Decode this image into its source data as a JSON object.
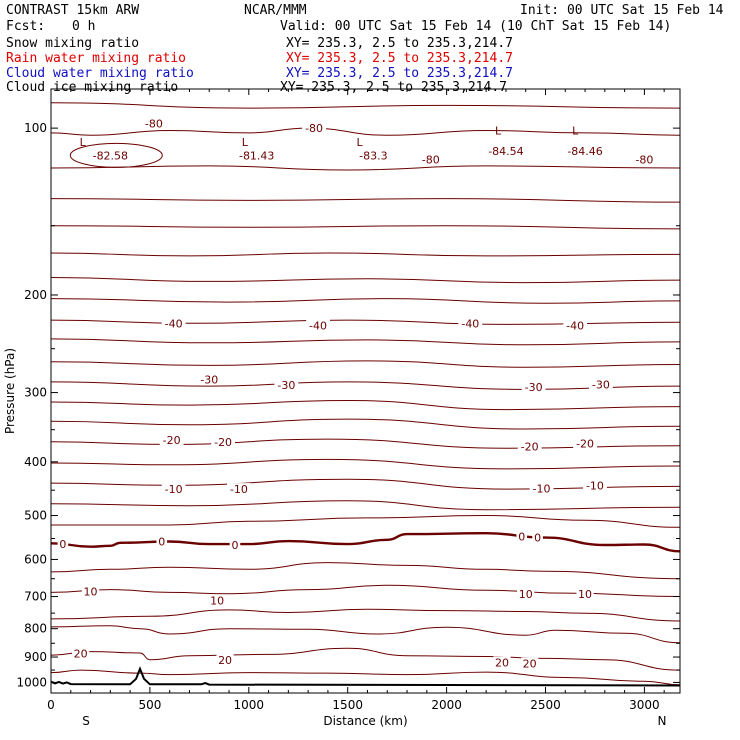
{
  "header": {
    "model": "CONTRAST 15km ARW",
    "center": "NCAR/MMM",
    "init": "Init: 00 UTC Sat 15 Feb 14",
    "fcst_label": "Fcst:",
    "fcst_value": "0 h",
    "valid": "Valid: 00 UTC Sat 15 Feb 14 (10 ChT Sat 15 Feb 14)"
  },
  "fields": [
    {
      "name": "Snow mixing ratio",
      "xy": "XY= 235.3,  2.5 to 235.3,214.7",
      "color": "#000000"
    },
    {
      "name": "Rain water mixing ratio",
      "xy": "XY= 235.3,  2.5 to 235.3,214.7",
      "color": "#e00000"
    },
    {
      "name": "Cloud water mixing ratio",
      "xy": "XY= 235.3,  2.5 to 235.3,214.7",
      "color": "#1010c0"
    },
    {
      "name": "Cloud ice mixing ratio",
      "xy": "XY= 235.3,  2.5 to 235.3,214.7",
      "color": "#000000"
    }
  ],
  "chart_data": {
    "type": "line",
    "xlabel": "Distance (km)",
    "ylabel": "Pressure (hPa)",
    "xlim": [
      0,
      3180
    ],
    "ylim": [
      1045,
      85
    ],
    "y_log": true,
    "x_ticks": [
      "0",
      "500",
      "1000",
      "1500",
      "2000",
      "2500",
      "3000"
    ],
    "x_tick_values": [
      0,
      500,
      1000,
      1500,
      2000,
      2500,
      3000
    ],
    "y_ticks": [
      "100",
      "200",
      "300",
      "400",
      "500",
      "600",
      "700",
      "800",
      "900",
      "1000"
    ],
    "y_tick_values": [
      100,
      200,
      300,
      400,
      500,
      600,
      700,
      800,
      900,
      1000
    ],
    "end_labels": {
      "left": "S",
      "right": "N"
    },
    "contour_color": "#6b0000",
    "isotherms": [
      {
        "points": [
          [
            0,
            90
          ],
          [
            1000,
            92
          ],
          [
            2000,
            91
          ],
          [
            3180,
            92
          ]
        ],
        "bold": false
      },
      {
        "points": [
          [
            0,
            102
          ],
          [
            200,
            103
          ],
          [
            600,
            101
          ],
          [
            1000,
            102
          ],
          [
            1300,
            100
          ],
          [
            1700,
            103
          ],
          [
            2200,
            101
          ],
          [
            2700,
            102
          ],
          [
            3180,
            103
          ]
        ],
        "bold": false
      },
      {
        "points": [
          [
            0,
            118
          ],
          [
            800,
            117
          ],
          [
            1500,
            119
          ],
          [
            2200,
            117
          ],
          [
            3180,
            118
          ]
        ],
        "bold": false
      },
      {
        "points": [
          [
            0,
            134
          ],
          [
            1000,
            135
          ],
          [
            2000,
            134
          ],
          [
            3180,
            136
          ]
        ],
        "bold": false
      },
      {
        "points": [
          [
            0,
            150
          ],
          [
            1000,
            151
          ],
          [
            2000,
            150
          ],
          [
            3180,
            152
          ]
        ],
        "bold": false
      },
      {
        "points": [
          [
            0,
            168
          ],
          [
            700,
            170
          ],
          [
            1400,
            168
          ],
          [
            2200,
            170
          ],
          [
            3180,
            169
          ]
        ],
        "bold": false
      },
      {
        "points": [
          [
            0,
            186
          ],
          [
            800,
            189
          ],
          [
            1600,
            187
          ],
          [
            2400,
            190
          ],
          [
            3180,
            188
          ]
        ],
        "bold": false
      },
      {
        "points": [
          [
            0,
            203
          ],
          [
            900,
            206
          ],
          [
            1700,
            203
          ],
          [
            2500,
            207
          ],
          [
            3180,
            205
          ]
        ],
        "bold": false
      },
      {
        "points": [
          [
            0,
            222
          ],
          [
            700,
            225
          ],
          [
            1500,
            222
          ],
          [
            2300,
            226
          ],
          [
            3180,
            224
          ]
        ],
        "bold": false
      },
      {
        "points": [
          [
            0,
            240
          ],
          [
            800,
            244
          ],
          [
            1600,
            241
          ],
          [
            2400,
            246
          ],
          [
            3180,
            243
          ]
        ],
        "bold": false
      },
      {
        "points": [
          [
            0,
            264
          ],
          [
            800,
            268
          ],
          [
            1600,
            263
          ],
          [
            2400,
            270
          ],
          [
            3180,
            267
          ]
        ],
        "bold": false
      },
      {
        "points": [
          [
            0,
            287
          ],
          [
            800,
            292
          ],
          [
            1500,
            287
          ],
          [
            2400,
            296
          ],
          [
            3180,
            292
          ]
        ],
        "bold": false
      },
      {
        "points": [
          [
            0,
            312
          ],
          [
            700,
            316
          ],
          [
            1500,
            310
          ],
          [
            2300,
            322
          ],
          [
            3180,
            318
          ]
        ],
        "bold": false
      },
      {
        "points": [
          [
            0,
            338
          ],
          [
            700,
            343
          ],
          [
            1500,
            335
          ],
          [
            2400,
            349
          ],
          [
            3180,
            345
          ]
        ],
        "bold": false
      },
      {
        "points": [
          [
            0,
            368
          ],
          [
            600,
            372
          ],
          [
            1400,
            364
          ],
          [
            2300,
            378
          ],
          [
            3180,
            374
          ]
        ],
        "bold": false
      },
      {
        "points": [
          [
            0,
            402
          ],
          [
            600,
            405
          ],
          [
            1400,
            396
          ],
          [
            2300,
            412
          ],
          [
            3180,
            407
          ]
        ],
        "bold": false
      },
      {
        "points": [
          [
            0,
            437
          ],
          [
            600,
            441
          ],
          [
            1500,
            430
          ],
          [
            2300,
            448
          ],
          [
            3180,
            443
          ]
        ],
        "bold": false
      },
      {
        "points": [
          [
            0,
            476
          ],
          [
            700,
            480
          ],
          [
            1500,
            470
          ],
          [
            2200,
            488
          ],
          [
            3180,
            483
          ]
        ],
        "bold": false
      },
      {
        "points": [
          [
            0,
            520
          ],
          [
            600,
            520
          ],
          [
            1000,
            512
          ],
          [
            1600,
            505
          ],
          [
            2200,
            500
          ],
          [
            2700,
            510
          ],
          [
            3180,
            525
          ]
        ],
        "bold": false
      },
      {
        "points": [
          [
            0,
            561
          ],
          [
            200,
            569
          ],
          [
            300,
            567
          ],
          [
            350,
            560
          ],
          [
            600,
            557
          ],
          [
            800,
            563
          ],
          [
            1000,
            563
          ],
          [
            1200,
            556
          ],
          [
            1500,
            563
          ],
          [
            1700,
            553
          ],
          [
            1800,
            540
          ],
          [
            2200,
            538
          ],
          [
            2500,
            548
          ],
          [
            2800,
            565
          ],
          [
            3000,
            564
          ],
          [
            3180,
            580
          ]
        ],
        "bold": true
      },
      {
        "points": [
          [
            0,
            632
          ],
          [
            300,
            625
          ],
          [
            600,
            620
          ],
          [
            1000,
            625
          ],
          [
            1400,
            608
          ],
          [
            1800,
            615
          ],
          [
            2200,
            625
          ],
          [
            2500,
            630
          ],
          [
            3180,
            650
          ]
        ],
        "bold": false
      },
      {
        "points": [
          [
            0,
            688
          ],
          [
            300,
            680
          ],
          [
            600,
            688
          ],
          [
            900,
            692
          ],
          [
            1300,
            680
          ],
          [
            1700,
            668
          ],
          [
            2200,
            682
          ],
          [
            2600,
            690
          ],
          [
            3180,
            700
          ]
        ],
        "bold": false
      },
      {
        "points": [
          [
            0,
            768
          ],
          [
            500,
            760
          ],
          [
            900,
            740
          ],
          [
            1200,
            748
          ],
          [
            1600,
            738
          ],
          [
            2000,
            742
          ],
          [
            2400,
            745
          ],
          [
            2700,
            750
          ],
          [
            3180,
            775
          ]
        ],
        "bold": false
      },
      {
        "points": [
          [
            0,
            794
          ],
          [
            300,
            790
          ],
          [
            450,
            800
          ],
          [
            600,
            818
          ],
          [
            900,
            800
          ],
          [
            1300,
            802
          ],
          [
            1650,
            818
          ],
          [
            2000,
            795
          ],
          [
            2400,
            822
          ],
          [
            2550,
            805
          ],
          [
            2900,
            815
          ],
          [
            3180,
            848
          ]
        ],
        "bold": false
      },
      {
        "points": [
          [
            0,
            893
          ],
          [
            200,
            880
          ],
          [
            450,
            885
          ],
          [
            500,
            910
          ],
          [
            700,
            895
          ],
          [
            1100,
            890
          ],
          [
            1500,
            868
          ],
          [
            1800,
            895
          ],
          [
            2200,
            898
          ],
          [
            2500,
            905
          ],
          [
            2800,
            910
          ],
          [
            3180,
            950
          ]
        ],
        "bold": false
      },
      {
        "points": [
          [
            0,
            960
          ],
          [
            150,
            950
          ],
          [
            450,
            962
          ],
          [
            600,
            968
          ],
          [
            1000,
            960
          ],
          [
            1400,
            962
          ],
          [
            1800,
            968
          ],
          [
            2200,
            958
          ],
          [
            2600,
            980
          ],
          [
            3000,
            995
          ],
          [
            3180,
            1010
          ]
        ],
        "bold": false
      }
    ],
    "terrain": [
      [
        0,
        997
      ],
      [
        20,
        1004
      ],
      [
        40,
        998
      ],
      [
        60,
        1005
      ],
      [
        80,
        1000
      ],
      [
        100,
        1007
      ],
      [
        400,
        1008
      ],
      [
        430,
        985
      ],
      [
        450,
        945
      ],
      [
        470,
        985
      ],
      [
        500,
        1008
      ],
      [
        760,
        1008
      ],
      [
        780,
        1003
      ],
      [
        800,
        1009
      ],
      [
        3180,
        1013
      ]
    ],
    "contour_labels": [
      {
        "x": 300,
        "p": 112,
        "text": "-82.58"
      },
      {
        "x": 1040,
        "p": 112,
        "text": "-81.43"
      },
      {
        "x": 1630,
        "p": 112,
        "text": "-83.3"
      },
      {
        "x": 2300,
        "p": 110,
        "text": "-84.54"
      },
      {
        "x": 2700,
        "p": 110,
        "text": "-84.46"
      },
      {
        "x": 520,
        "p": 98,
        "text": "-80"
      },
      {
        "x": 1330,
        "p": 100,
        "text": "-80"
      },
      {
        "x": 1920,
        "p": 114,
        "text": "-80"
      },
      {
        "x": 3000,
        "p": 114,
        "text": "-80"
      },
      {
        "x": 620,
        "p": 225,
        "text": "-40"
      },
      {
        "x": 1350,
        "p": 227,
        "text": "-40"
      },
      {
        "x": 2120,
        "p": 225,
        "text": "-40"
      },
      {
        "x": 2650,
        "p": 227,
        "text": "-40"
      },
      {
        "x": 800,
        "p": 284,
        "text": "-30"
      },
      {
        "x": 1190,
        "p": 291,
        "text": "-30"
      },
      {
        "x": 2440,
        "p": 293,
        "text": "-30"
      },
      {
        "x": 2780,
        "p": 290,
        "text": "-30"
      },
      {
        "x": 610,
        "p": 365,
        "text": "-20"
      },
      {
        "x": 870,
        "p": 368,
        "text": "-20"
      },
      {
        "x": 2420,
        "p": 375,
        "text": "-20"
      },
      {
        "x": 2700,
        "p": 371,
        "text": "-20"
      },
      {
        "x": 620,
        "p": 448,
        "text": "-10"
      },
      {
        "x": 950,
        "p": 448,
        "text": "-10"
      },
      {
        "x": 2480,
        "p": 447,
        "text": "-10"
      },
      {
        "x": 2750,
        "p": 441,
        "text": "-10"
      },
      {
        "x": 60,
        "p": 563,
        "text": "0"
      },
      {
        "x": 560,
        "p": 557,
        "text": "0"
      },
      {
        "x": 930,
        "p": 565,
        "text": "0"
      },
      {
        "x": 2380,
        "p": 545,
        "text": "0"
      },
      {
        "x": 2460,
        "p": 548,
        "text": "0"
      },
      {
        "x": 200,
        "p": 686,
        "text": "10"
      },
      {
        "x": 840,
        "p": 712,
        "text": "10"
      },
      {
        "x": 2400,
        "p": 693,
        "text": "10"
      },
      {
        "x": 2700,
        "p": 693,
        "text": "10"
      },
      {
        "x": 150,
        "p": 886,
        "text": "20"
      },
      {
        "x": 880,
        "p": 912,
        "text": "20"
      },
      {
        "x": 2280,
        "p": 920,
        "text": "20"
      },
      {
        "x": 2420,
        "p": 925,
        "text": "20"
      }
    ],
    "low_markers": [
      {
        "x": 160,
        "p": 106,
        "text": "L"
      },
      {
        "x": 980,
        "p": 106,
        "text": "L"
      },
      {
        "x": 1560,
        "p": 106,
        "text": "L"
      },
      {
        "x": 2260,
        "p": 101,
        "text": "L"
      },
      {
        "x": 2650,
        "p": 101,
        "text": "L"
      }
    ]
  }
}
